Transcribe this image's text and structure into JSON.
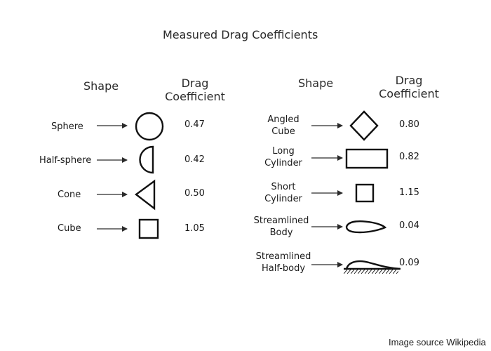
{
  "title": "Measured Drag Coefficients",
  "columns": [
    {
      "header_shape": "Shape",
      "header_coef_line1": "Drag",
      "header_coef_line2": "Coefficient"
    },
    {
      "header_shape": "Shape",
      "header_coef_line1": "Drag",
      "header_coef_line2": "Coefficient"
    }
  ],
  "left_items": [
    {
      "name": "Sphere",
      "coefficient": "0.47",
      "icon": "sphere-icon"
    },
    {
      "name": "Half-sphere",
      "coefficient": "0.42",
      "icon": "half-sphere-icon"
    },
    {
      "name": "Cone",
      "coefficient": "0.50",
      "icon": "cone-icon"
    },
    {
      "name": "Cube",
      "coefficient": "1.05",
      "icon": "cube-icon"
    }
  ],
  "right_items": [
    {
      "name_line1": "Angled",
      "name_line2": "Cube",
      "coefficient": "0.80",
      "icon": "angled-cube-icon"
    },
    {
      "name_line1": "Long",
      "name_line2": "Cylinder",
      "coefficient": "0.82",
      "icon": "long-cylinder-icon"
    },
    {
      "name_line1": "Short",
      "name_line2": "Cylinder",
      "coefficient": "1.15",
      "icon": "short-cylinder-icon"
    },
    {
      "name_line1": "Streamlined",
      "name_line2": "Body",
      "coefficient": "0.04",
      "icon": "streamlined-body-icon"
    },
    {
      "name_line1": "Streamlined",
      "name_line2": "Half-body",
      "coefficient": "0.09",
      "icon": "streamlined-half-body-icon"
    }
  ],
  "credit": "Image source Wikipedia"
}
